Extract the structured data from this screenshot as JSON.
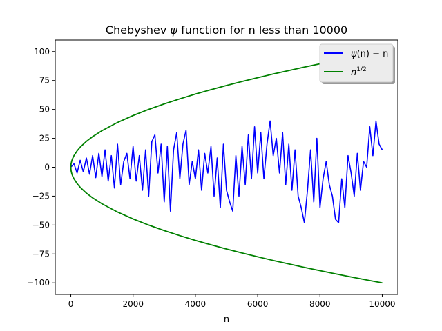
{
  "chart_data": {
    "type": "line",
    "title_prefix": "Chebyshev ",
    "title_symbol": "ψ",
    "title_suffix": " function for n less than 10000",
    "xlabel": "n",
    "ylabel": "",
    "xlim": [
      -500,
      10500
    ],
    "ylim": [
      -110,
      110
    ],
    "x_ticks": [
      0,
      2000,
      4000,
      6000,
      8000,
      10000
    ],
    "x_tick_labels": [
      "0",
      "2000",
      "4000",
      "6000",
      "8000",
      "10000"
    ],
    "y_ticks": [
      -100,
      -75,
      -50,
      -25,
      0,
      25,
      50,
      75,
      100
    ],
    "y_tick_labels": [
      "−100",
      "−75",
      "−50",
      "−25",
      "0",
      "25",
      "50",
      "75",
      "100"
    ],
    "grid": false,
    "legend_placement": "top-right",
    "series": [
      {
        "name": "ψ(n) − n",
        "legend_psi": "ψ",
        "legend_rest": "(n) − n",
        "color": "#0000ff",
        "x": [
          0,
          100,
          200,
          300,
          400,
          500,
          600,
          700,
          800,
          900,
          1000,
          1100,
          1200,
          1300,
          1400,
          1500,
          1600,
          1700,
          1800,
          1900,
          2000,
          2100,
          2200,
          2300,
          2400,
          2500,
          2600,
          2700,
          2800,
          2900,
          3000,
          3100,
          3200,
          3300,
          3400,
          3500,
          3600,
          3700,
          3800,
          3900,
          4000,
          4100,
          4200,
          4300,
          4400,
          4500,
          4600,
          4700,
          4800,
          4900,
          5000,
          5100,
          5200,
          5300,
          5400,
          5500,
          5600,
          5700,
          5800,
          5900,
          6000,
          6100,
          6200,
          6300,
          6400,
          6500,
          6600,
          6700,
          6800,
          6900,
          7000,
          7100,
          7200,
          7300,
          7400,
          7500,
          7600,
          7700,
          7800,
          7900,
          8000,
          8100,
          8200,
          8300,
          8400,
          8500,
          8600,
          8700,
          8800,
          8900,
          9000,
          9100,
          9200,
          9300,
          9400,
          9500,
          9600,
          9700,
          9800,
          9900,
          10000
        ],
        "y": [
          0,
          3,
          -5,
          6,
          -4,
          8,
          -6,
          10,
          -9,
          12,
          -8,
          15,
          -12,
          10,
          -18,
          20,
          -15,
          5,
          12,
          -10,
          18,
          -12,
          10,
          -20,
          15,
          -25,
          22,
          28,
          -5,
          20,
          -30,
          18,
          -38,
          15,
          30,
          -10,
          20,
          32,
          -15,
          5,
          -10,
          15,
          -20,
          12,
          -5,
          18,
          -25,
          8,
          -35,
          20,
          -20,
          -30,
          -38,
          10,
          -25,
          18,
          -15,
          28,
          -10,
          35,
          -5,
          30,
          -10,
          20,
          40,
          10,
          25,
          -5,
          30,
          -15,
          20,
          -20,
          15,
          -25,
          -35,
          -48,
          -20,
          15,
          -30,
          25,
          -35,
          -10,
          5,
          -15,
          -25,
          -45,
          -48,
          -10,
          -35,
          10,
          -5,
          -25,
          12,
          -20,
          5,
          0,
          35,
          10,
          40,
          20,
          15
        ]
      },
      {
        "name": "n^1/2",
        "legend_base": "n",
        "legend_sup": "1/2",
        "color": "#008000",
        "x": [
          0,
          10,
          30,
          60,
          100,
          200,
          300,
          500,
          700,
          1000,
          1500,
          2000,
          2500,
          3000,
          3500,
          4000,
          4500,
          5000,
          5500,
          6000,
          6500,
          7000,
          7500,
          8000,
          8500,
          9000,
          9500,
          10000
        ],
        "y": [
          0,
          3.16,
          5.48,
          7.75,
          10,
          14.14,
          17.32,
          22.36,
          26.46,
          31.62,
          38.73,
          44.72,
          50,
          54.77,
          59.16,
          63.25,
          67.08,
          70.71,
          74.16,
          77.46,
          80.62,
          83.67,
          86.6,
          89.44,
          92.2,
          94.87,
          97.47,
          100
        ]
      }
    ]
  }
}
